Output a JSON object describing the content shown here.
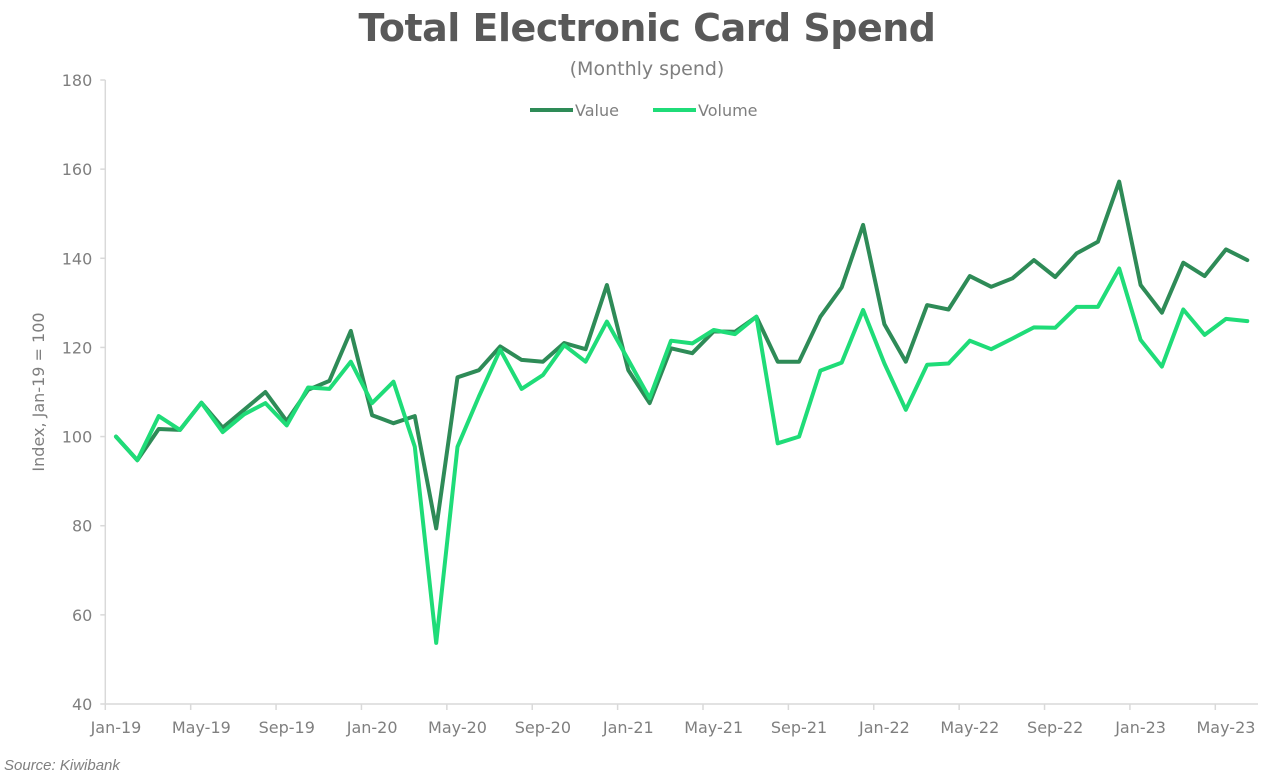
{
  "chart_data": {
    "type": "line",
    "title": "Total Electronic Card Spend",
    "subtitle": "(Monthly spend)",
    "xlabel": "",
    "ylabel": "Index, Jan-19 = 100",
    "ylim": [
      40,
      180
    ],
    "yticks": [
      "40",
      "60",
      "80",
      "100",
      "120",
      "140",
      "160",
      "180"
    ],
    "grid": false,
    "legend_position": "top-center",
    "x_tick_labels": [
      "Jan-19",
      "May-19",
      "Sep-19",
      "Jan-20",
      "May-20",
      "Sep-20",
      "Jan-21",
      "May-21",
      "Sep-21",
      "Jan-22",
      "May-22",
      "Sep-22",
      "Jan-23",
      "May-23"
    ],
    "x_start": "Jan-19",
    "x_end": "Jun-23",
    "series": [
      {
        "name": "Value",
        "color": "#2e8b57",
        "values": [
          100,
          94.7,
          101.7,
          101.5,
          107.6,
          102,
          106,
          110,
          103.5,
          110.5,
          112.5,
          123.7,
          104.8,
          103,
          104.6,
          79.4,
          113.3,
          114.9,
          120.2,
          117.2,
          116.8,
          121,
          119.6,
          134,
          114.9,
          107.5,
          119.8,
          118.7,
          123.6,
          123.5,
          126.9,
          116.8,
          116.8,
          126.9,
          133.5,
          147.5,
          125.2,
          116.8,
          129.5,
          128.5,
          136,
          133.6,
          135.5,
          139.6,
          135.8,
          141.1,
          143.7,
          157.2,
          134,
          127.8,
          139,
          136,
          142,
          139.6
        ]
      },
      {
        "name": "Volume",
        "color": "#1fdc78",
        "values": [
          100,
          94.7,
          104.6,
          101.5,
          107.6,
          101,
          105,
          107.5,
          102.5,
          111,
          110.7,
          116.8,
          107.5,
          112.3,
          97.7,
          53.7,
          97.7,
          109,
          119.5,
          110.7,
          113.8,
          120.5,
          116.8,
          125.8,
          117.2,
          108.6,
          121.5,
          120.9,
          123.9,
          123,
          126.9,
          98.5,
          100,
          114.8,
          116.6,
          128.4,
          116.4,
          106,
          116.1,
          116.4,
          121.5,
          119.6,
          122,
          124.5,
          124.4,
          129.1,
          129.1,
          137.7,
          121.7,
          115.7,
          128.5,
          122.8,
          126.4,
          125.9
        ]
      }
    ]
  },
  "source": "Source: Kiwibank"
}
